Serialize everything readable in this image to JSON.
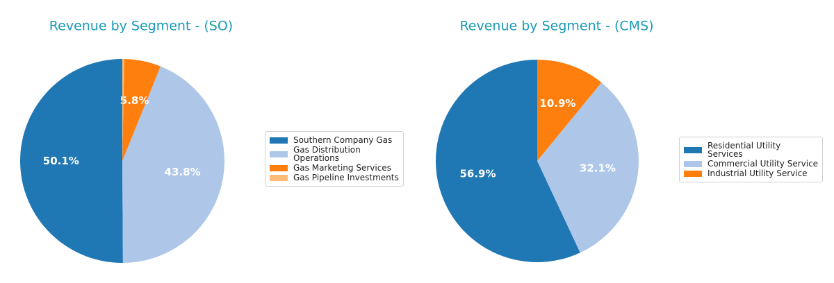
{
  "chart_data": [
    {
      "type": "pie",
      "title": "Revenue by Segment - (SO)",
      "categories": [
        "Southern Company Gas",
        "Gas Distribution\nOperations",
        "Gas Marketing Services",
        "Gas Pipeline Investments"
      ],
      "values": [
        50.1,
        43.8,
        5.8,
        0.3
      ],
      "value_labels": [
        "50.1%",
        "43.8%",
        "5.8%",
        null
      ],
      "colors": [
        "#1f77b4",
        "#aec7e8",
        "#ff7f0e",
        "#ffbb78"
      ],
      "legend": "right"
    },
    {
      "type": "pie",
      "title": "Revenue by Segment - (CMS)",
      "categories": [
        "Residential Utility\nServices",
        "Commercial Utility Service",
        "Industrial Utility Service"
      ],
      "values": [
        56.9,
        32.1,
        10.9
      ],
      "value_labels": [
        "56.9%",
        "32.1%",
        "10.9%"
      ],
      "colors": [
        "#1f77b4",
        "#aec7e8",
        "#ff7f0e"
      ],
      "legend": "right"
    }
  ]
}
